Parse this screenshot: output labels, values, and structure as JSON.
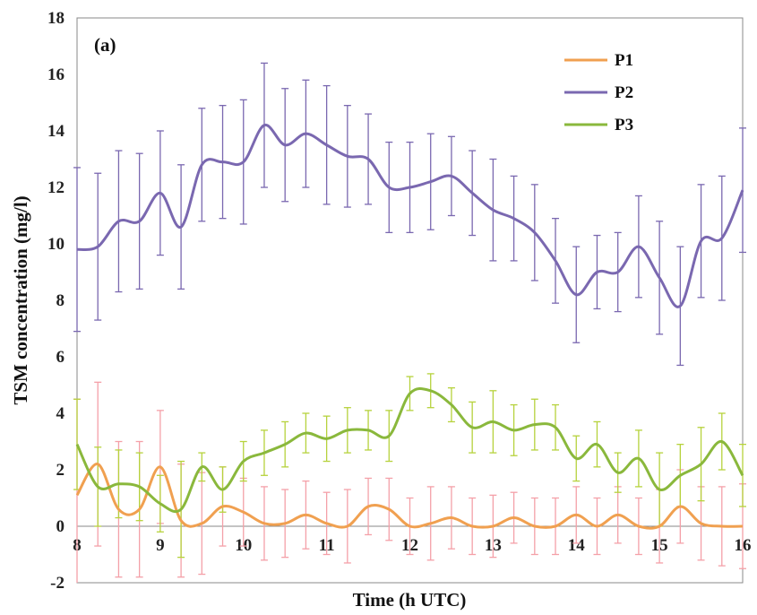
{
  "chart_data": {
    "type": "line",
    "panel_label": "(a)",
    "xlabel": "Time (h UTC)",
    "ylabel": "TSM concentration (mg/l)",
    "xlim": [
      8,
      16
    ],
    "ylim": [
      -2,
      18
    ],
    "x_ticks": [
      8,
      9,
      10,
      11,
      12,
      13,
      14,
      15,
      16
    ],
    "y_ticks": [
      -2,
      0,
      2,
      4,
      6,
      8,
      10,
      12,
      14,
      16,
      18
    ],
    "legend_position": "top-right",
    "x": [
      8.0,
      8.25,
      8.5,
      8.75,
      9.0,
      9.25,
      9.5,
      9.75,
      10.0,
      10.25,
      10.5,
      10.75,
      11.0,
      11.25,
      11.5,
      11.75,
      12.0,
      12.25,
      12.5,
      12.75,
      13.0,
      13.25,
      13.5,
      13.75,
      14.0,
      14.25,
      14.5,
      14.75,
      15.0,
      15.25,
      15.5,
      15.75,
      16.0
    ],
    "series": [
      {
        "name": "P1",
        "color": "#f0a050",
        "error_color": "#f4a0a8",
        "values": [
          1.1,
          2.2,
          0.6,
          0.6,
          2.1,
          0.2,
          0.1,
          0.7,
          0.5,
          0.1,
          0.1,
          0.4,
          0.1,
          0.0,
          0.7,
          0.6,
          0.0,
          0.1,
          0.3,
          0.0,
          0.0,
          0.3,
          0.0,
          0.0,
          0.4,
          0.0,
          0.4,
          0.0,
          0.0,
          0.7,
          0.1,
          0.0,
          0.0
        ],
        "errors": [
          3.4,
          2.9,
          2.4,
          2.4,
          2.0,
          2.0,
          1.8,
          1.4,
          1.2,
          1.3,
          1.2,
          1.2,
          1.1,
          1.3,
          1.0,
          1.1,
          1.0,
          1.3,
          1.1,
          1.0,
          1.1,
          0.9,
          1.0,
          1.0,
          1.0,
          1.0,
          1.0,
          1.0,
          1.3,
          1.3,
          1.3,
          1.4,
          1.5
        ]
      },
      {
        "name": "P2",
        "color": "#7a68b0",
        "error_color": "#7a68b0",
        "values": [
          9.8,
          9.9,
          10.8,
          10.8,
          11.8,
          10.6,
          12.8,
          12.9,
          12.9,
          14.2,
          13.5,
          13.9,
          13.5,
          13.1,
          13.0,
          12.0,
          12.0,
          12.2,
          12.4,
          11.8,
          11.2,
          10.9,
          10.4,
          9.4,
          8.2,
          9.0,
          9.0,
          9.9,
          8.8,
          7.8,
          10.1,
          10.2,
          11.9
        ],
        "errors": [
          2.9,
          2.6,
          2.5,
          2.4,
          2.2,
          2.2,
          2.0,
          2.0,
          2.2,
          2.2,
          2.0,
          1.9,
          2.1,
          1.8,
          1.6,
          1.6,
          1.6,
          1.7,
          1.4,
          1.5,
          1.8,
          1.5,
          1.7,
          1.5,
          1.7,
          1.3,
          1.4,
          1.8,
          2.0,
          2.1,
          2.0,
          2.2,
          2.2
        ]
      },
      {
        "name": "P3",
        "color": "#8ab83c",
        "error_color": "#b6d23c",
        "values": [
          2.9,
          1.4,
          1.5,
          1.4,
          0.8,
          0.6,
          2.1,
          1.3,
          2.3,
          2.6,
          2.9,
          3.3,
          3.1,
          3.4,
          3.4,
          3.2,
          4.7,
          4.8,
          4.3,
          3.5,
          3.7,
          3.4,
          3.6,
          3.5,
          2.4,
          2.9,
          1.9,
          2.4,
          1.3,
          1.8,
          2.2,
          3.0,
          1.8
        ],
        "errors": [
          1.6,
          1.4,
          1.2,
          1.2,
          1.0,
          1.7,
          0.5,
          0.8,
          0.7,
          0.8,
          0.8,
          0.7,
          0.8,
          0.8,
          0.7,
          0.9,
          0.6,
          0.6,
          0.6,
          0.9,
          1.1,
          0.9,
          0.9,
          0.8,
          0.8,
          0.8,
          0.7,
          1.0,
          1.3,
          1.1,
          1.3,
          1.0,
          1.1
        ]
      }
    ]
  }
}
